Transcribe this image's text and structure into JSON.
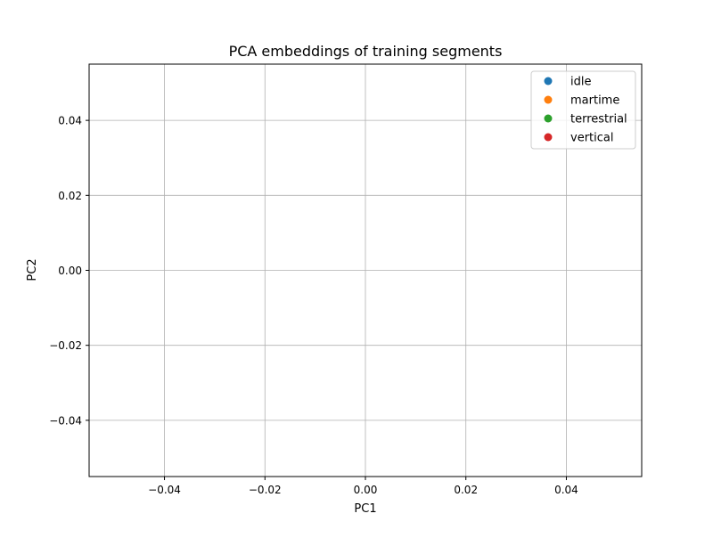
{
  "chart_data": {
    "type": "scatter",
    "title": "PCA embeddings of training segments",
    "xlabel": "PC1",
    "ylabel": "PC2",
    "xlim": [
      -0.055,
      0.055
    ],
    "ylim": [
      -0.055,
      0.055
    ],
    "xticks": [
      -0.04,
      -0.02,
      0.0,
      0.02,
      0.04
    ],
    "yticks": [
      -0.04,
      -0.02,
      0.0,
      0.02,
      0.04
    ],
    "xtick_labels": [
      "−0.04",
      "−0.02",
      "0.00",
      "0.02",
      "0.04"
    ],
    "ytick_labels": [
      "−0.04",
      "−0.02",
      "0.00",
      "0.02",
      "0.04"
    ],
    "grid": true,
    "legend_position": "top-right",
    "series": [
      {
        "name": "idle",
        "color": "#1f77b4",
        "points": []
      },
      {
        "name": "martime",
        "color": "#ff7f0e",
        "points": []
      },
      {
        "name": "terrestrial",
        "color": "#2ca02c",
        "points": []
      },
      {
        "name": "vertical",
        "color": "#d62728",
        "points": []
      }
    ]
  }
}
